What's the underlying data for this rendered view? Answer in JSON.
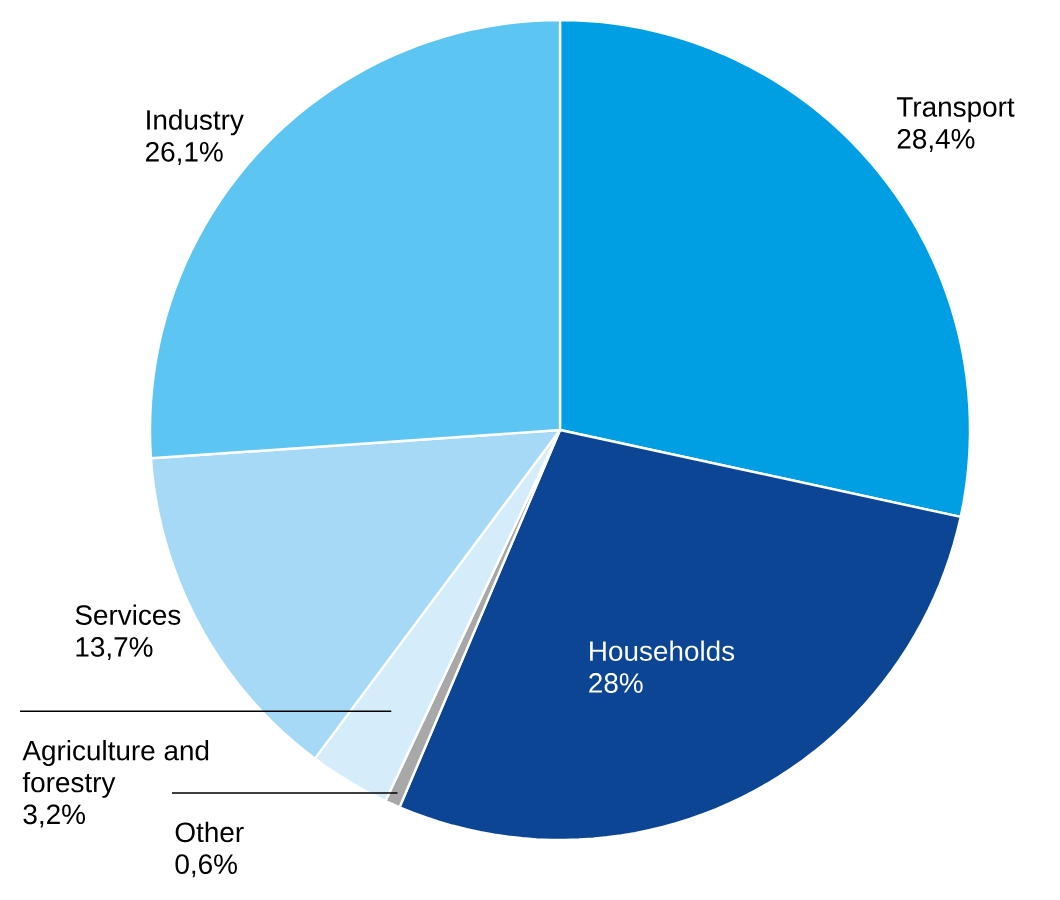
{
  "chart_data": {
    "type": "pie",
    "categories": [
      "Transport",
      "Households",
      "Other",
      "Agriculture and forestry",
      "Services",
      "Industry"
    ],
    "values": [
      28.4,
      28,
      0.6,
      3.2,
      13.7,
      26.1
    ],
    "colors": [
      "#009fe3",
      "#0c4594",
      "#a8a8a8",
      "#d5edfb",
      "#a5d9f5",
      "#5cc5f2"
    ],
    "value_labels": [
      "28,4%",
      "28%",
      "0,6%",
      "3,2%",
      "13,7%",
      "26,1%"
    ]
  }
}
